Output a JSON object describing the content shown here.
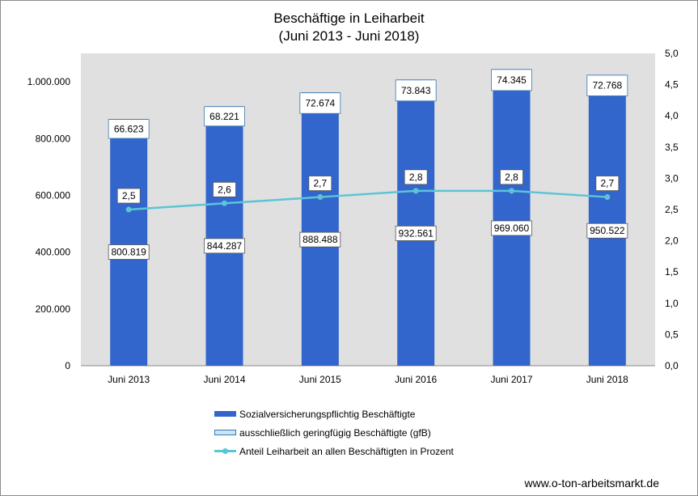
{
  "title_line1": "Beschäftige in Leiharbeit",
  "title_line2": "(Juni 2013 - Juni 2018)",
  "source": "www.o-ton-arbeitsmarkt.de",
  "colors": {
    "svb": "#3366cc",
    "gfb": "#c9e6f7",
    "gfb_border": "#3b77b0",
    "line": "#5bc5d6",
    "plot_bg": "#e0e0e0"
  },
  "legend": {
    "svb": "Sozialversicherungspflichtig Beschäftigte",
    "gfb": "ausschließlich geringfügig Beschäftigte (gfB)",
    "share": "Anteil Leiharbeit an allen Beschäftigten in Prozent"
  },
  "chart_data": {
    "type": "bar",
    "stacked": true,
    "categories": [
      "Juni 2013",
      "Juni 2014",
      "Juni 2015",
      "Juni 2016",
      "Juni 2017",
      "Juni 2018"
    ],
    "series": [
      {
        "name": "Sozialversicherungspflichtig Beschäftigte",
        "type": "bar",
        "axis": "left",
        "values": [
          800819,
          844287,
          888488,
          932561,
          969060,
          950522
        ],
        "labels": [
          "800.819",
          "844.287",
          "888.488",
          "932.561",
          "969.060",
          "950.522"
        ]
      },
      {
        "name": "ausschließlich geringfügig Beschäftigte (gfB)",
        "type": "bar",
        "axis": "left",
        "values": [
          66623,
          68221,
          72674,
          73843,
          74345,
          72768
        ],
        "labels": [
          "66.623",
          "68.221",
          "72.674",
          "73.843",
          "74.345",
          "72.768"
        ]
      },
      {
        "name": "Anteil Leiharbeit an allen Beschäftigten in Prozent",
        "type": "line",
        "axis": "right",
        "values": [
          2.5,
          2.6,
          2.7,
          2.8,
          2.8,
          2.7
        ],
        "labels": [
          "2,5",
          "2,6",
          "2,7",
          "2,8",
          "2,8",
          "2,7"
        ]
      }
    ],
    "ylim_left": [
      0,
      1100000
    ],
    "ylim_right": [
      0,
      5
    ],
    "y_left_ticks": [
      "0",
      "200.000",
      "400.000",
      "600.000",
      "800.000",
      "1.000.000"
    ],
    "y_right_ticks": [
      "0,0",
      "0,5",
      "1,0",
      "1,5",
      "2,0",
      "2,5",
      "3,0",
      "3,5",
      "4,0",
      "4,5",
      "5,0"
    ],
    "grid": false,
    "legend_position": "bottom"
  }
}
